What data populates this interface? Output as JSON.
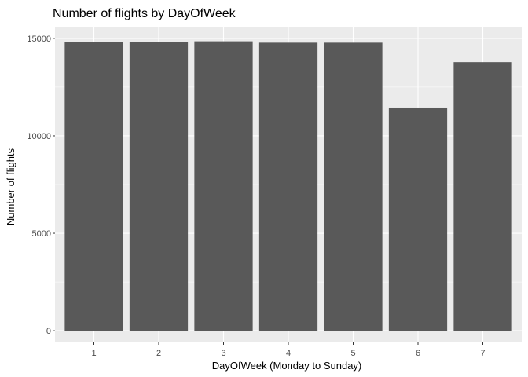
{
  "chart_data": {
    "type": "bar",
    "title": "Number of flights by DayOfWeek",
    "xlabel": "DayOfWeek (Monday to Sunday)",
    "ylabel": "Number of flights",
    "categories": [
      "1",
      "2",
      "3",
      "4",
      "5",
      "6",
      "7"
    ],
    "values": [
      14800,
      14800,
      14850,
      14780,
      14780,
      11450,
      13780
    ],
    "ylim": [
      -600,
      15600
    ],
    "yticks": [
      0,
      5000,
      10000,
      15000
    ],
    "ytick_labels": [
      "0",
      "5000",
      "10000",
      "15000"
    ],
    "grid": true,
    "legend": "none",
    "colors": {
      "bar": "#595959",
      "panel": "#ebebeb",
      "grid_major": "#ffffff",
      "grid_minor": "#f5f5f5",
      "tick": "#4d4d4d"
    }
  }
}
